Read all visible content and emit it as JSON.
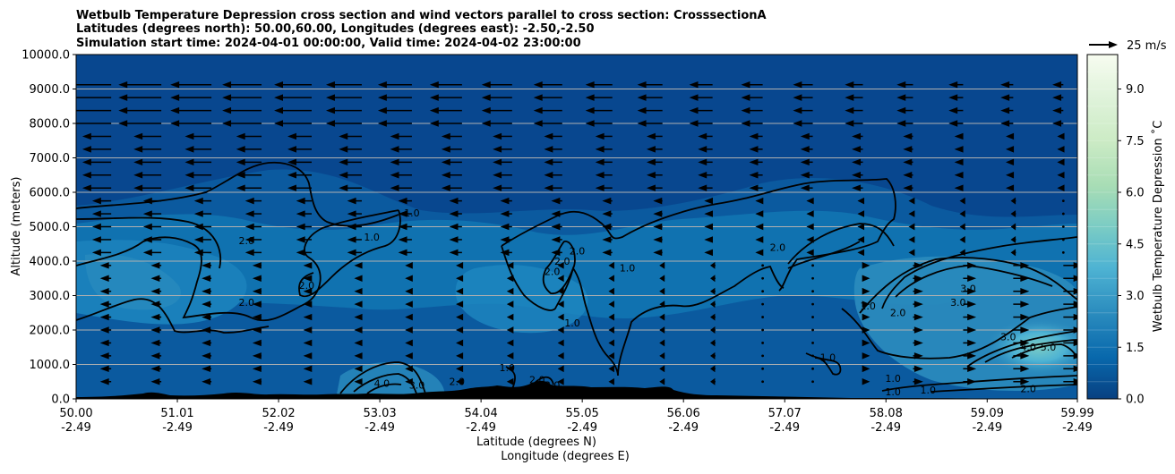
{
  "chart_data": {
    "type": "heatmap",
    "title_lines": [
      "Wetbulb Temperature Depression cross section and wind vectors parallel to cross section: CrosssectionA",
      "Latitudes (degrees north): 50.00,60.00, Longitudes (degrees east): -2.50,-2.50",
      "Simulation start time: 2024-04-01 00:00:00, Valid time: 2024-04-02 23:00:00"
    ],
    "ylabel": "Altitude (meters)",
    "xlabel_lat": "Latitude (degrees N)",
    "xlabel_lon": "Longitude (degrees E)",
    "xlim": [
      50.0,
      59.99
    ],
    "ylim": [
      0,
      10000
    ],
    "x_ticks": [
      {
        "lat": "50.00",
        "lon": "-2.49"
      },
      {
        "lat": "51.01",
        "lon": "-2.49"
      },
      {
        "lat": "52.02",
        "lon": "-2.49"
      },
      {
        "lat": "53.03",
        "lon": "-2.49"
      },
      {
        "lat": "54.04",
        "lon": "-2.49"
      },
      {
        "lat": "55.05",
        "lon": "-2.49"
      },
      {
        "lat": "56.06",
        "lon": "-2.49"
      },
      {
        "lat": "57.07",
        "lon": "-2.49"
      },
      {
        "lat": "58.08",
        "lon": "-2.49"
      },
      {
        "lat": "59.09",
        "lon": "-2.49"
      },
      {
        "lat": "59.99",
        "lon": "-2.49"
      }
    ],
    "y_ticks": [
      "0.0",
      "1000.0",
      "2000.0",
      "3000.0",
      "4000.0",
      "5000.0",
      "6000.0",
      "7000.0",
      "8000.0",
      "9000.0",
      "10000.0"
    ],
    "grid": "horizontal",
    "colorbar": {
      "label": "Wetbulb Temperature Depression ˚C",
      "range": [
        0.0,
        10.0
      ],
      "ticks": [
        "0.0",
        "1.5",
        "3.0",
        "4.5",
        "6.0",
        "7.5",
        "9.0"
      ],
      "tick_values": [
        0.0,
        1.5,
        3.0,
        4.5,
        6.0,
        7.5,
        9.0
      ],
      "colormap": "GnBu_r",
      "levels": 20
    },
    "wind_reference": {
      "label": "25 m/s",
      "value": 25
    },
    "contour_levels": [
      1.0,
      2.0,
      3.0,
      4.0,
      5.0
    ],
    "contour_labels": [
      {
        "text": "2.0",
        "lat": 51.7,
        "alt": 4500
      },
      {
        "text": "2.0",
        "lat": 51.7,
        "alt": 2700
      },
      {
        "text": "2.0",
        "lat": 52.3,
        "alt": 3200
      },
      {
        "text": "1.0",
        "lat": 52.95,
        "alt": 4600
      },
      {
        "text": "1.0",
        "lat": 53.35,
        "alt": 5300
      },
      {
        "text": "2.0",
        "lat": 55.0,
        "alt": 4200
      },
      {
        "text": "2.0",
        "lat": 54.75,
        "alt": 3600
      },
      {
        "text": "2.0",
        "lat": 54.85,
        "alt": 3900
      },
      {
        "text": "1.0",
        "lat": 55.5,
        "alt": 3700
      },
      {
        "text": "1.0",
        "lat": 54.95,
        "alt": 2100
      },
      {
        "text": "2.0",
        "lat": 57.0,
        "alt": 4300
      },
      {
        "text": "1.0",
        "lat": 57.5,
        "alt": 1100
      },
      {
        "text": "1.0",
        "lat": 57.9,
        "alt": 2600
      },
      {
        "text": "2.0",
        "lat": 58.2,
        "alt": 2400
      },
      {
        "text": "3.0",
        "lat": 58.9,
        "alt": 3100
      },
      {
        "text": "3.0",
        "lat": 58.8,
        "alt": 2700
      },
      {
        "text": "1.0",
        "lat": 58.15,
        "alt": 500
      },
      {
        "text": "1.0",
        "lat": 58.15,
        "alt": 100
      },
      {
        "text": "1.0",
        "lat": 58.5,
        "alt": 150
      },
      {
        "text": "3.0",
        "lat": 59.3,
        "alt": 1700
      },
      {
        "text": "4.0",
        "lat": 59.5,
        "alt": 1400
      },
      {
        "text": "5.0",
        "lat": 59.7,
        "alt": 1400
      },
      {
        "text": "2.0",
        "lat": 59.5,
        "alt": 200
      },
      {
        "text": "2.0",
        "lat": 53.8,
        "alt": 400
      },
      {
        "text": "3.0",
        "lat": 53.4,
        "alt": 300
      },
      {
        "text": "4.0",
        "lat": 53.05,
        "alt": 350
      },
      {
        "text": "1.0",
        "lat": 54.3,
        "alt": 800
      },
      {
        "text": "2.0",
        "lat": 54.6,
        "alt": 450
      },
      {
        "text": "3.0",
        "lat": 54.75,
        "alt": 300
      }
    ]
  }
}
